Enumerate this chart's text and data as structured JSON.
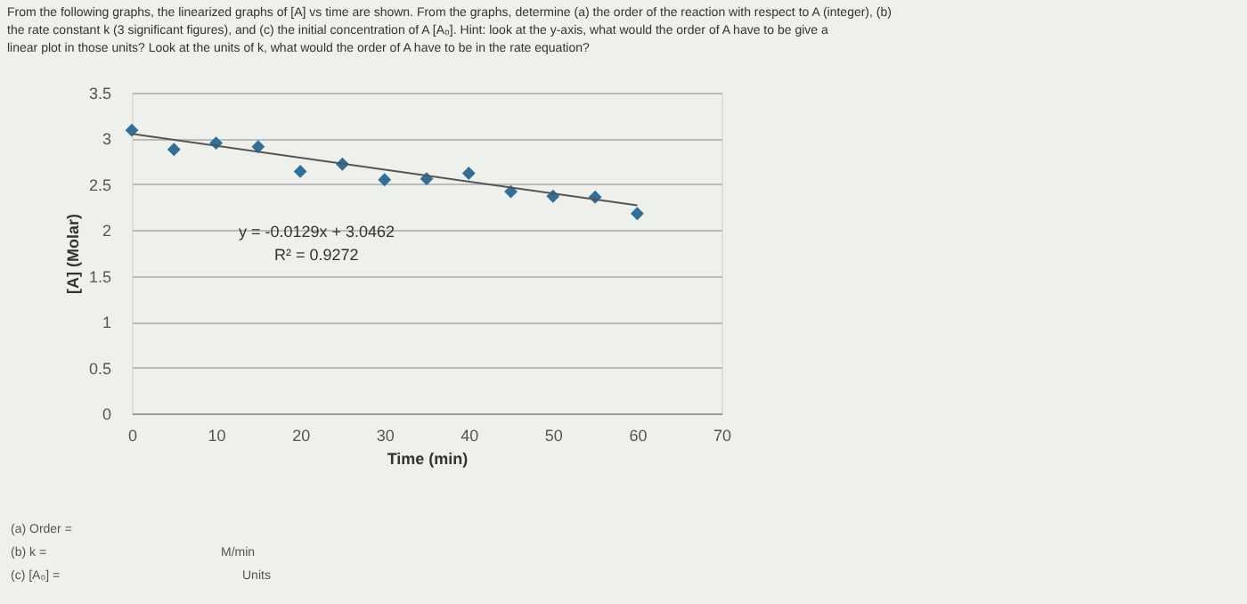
{
  "chart_data": {
    "type": "scatter",
    "title": "From the following graphs, the linearized graphs of [A] vs time are shown. From the graphs, determine (a) the order of the reaction with respect to A (integer), (b) the rate constant k (3 significant figures), and (c) the initial concentration of A [A₀]. Hint: look at the y-axis, what would the order of A have to be give a linear plot in those units? Look at the units of k, what would the order of A have to be in the rate equation?",
    "xlabel": "Time (min)",
    "ylabel": "[A] (Molar)",
    "x": [
      0,
      5,
      10,
      15,
      20,
      25,
      30,
      35,
      40,
      45,
      50,
      55,
      60
    ],
    "series": [
      {
        "color": "#2f6f9a",
        "marker": "diamond",
        "values": [
          3.09,
          2.88,
          2.95,
          2.91,
          2.64,
          2.72,
          2.55,
          2.56,
          2.62,
          2.42,
          2.37,
          2.36,
          2.18
        ]
      },
      {
        "type": "line",
        "color": "#555555",
        "marker": "none",
        "x": [
          0,
          60
        ],
        "values": [
          3.05,
          2.27
        ]
      }
    ],
    "xlim": [
      0,
      70
    ],
    "xticks": [
      0,
      10,
      20,
      30,
      40,
      50,
      60,
      70
    ],
    "ylim": [
      0,
      3.5
    ],
    "yticks": [
      0,
      0.5,
      1,
      1.5,
      2,
      2.5,
      3,
      3.5
    ],
    "grid": "y",
    "annotations": [
      "y = -0.0129x + 3.0462",
      "R² = 0.9272",
      "(a) Order =",
      "(b) k =",
      "M/min",
      "(c) [A₀] =",
      "Units"
    ]
  }
}
